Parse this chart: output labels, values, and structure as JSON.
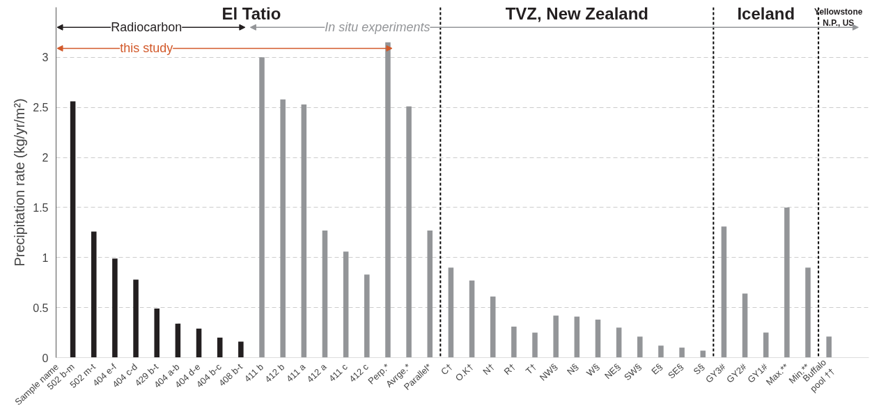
{
  "chart_data": {
    "type": "bar",
    "ylabel": "Precipitation rate (kg/yr/m²)",
    "categories": [
      "502 b-m",
      "502 m-t",
      "404 e-f",
      "404 c-d",
      "429 b-t",
      "404 a-b",
      "404 d-e",
      "404 b-c",
      "408 b-t",
      "411 b",
      "412 b",
      "411 a",
      "412 a",
      "411 c",
      "412 c",
      "Perp.*",
      "Avrge.*",
      "Parallel*",
      "C†",
      "O.K†",
      "N†",
      "R†",
      "T†",
      "NW§",
      "N§",
      "W§",
      "NE§",
      "SW§",
      "E§",
      "SE§",
      "S§",
      "GY3#",
      "GY2#",
      "GY1#",
      "Max.**",
      "Min.**",
      "Buffalo pool ††"
    ],
    "values": [
      2.56,
      1.26,
      0.99,
      0.78,
      0.49,
      0.34,
      0.29,
      0.2,
      0.16,
      3.0,
      2.58,
      2.53,
      1.27,
      1.06,
      0.83,
      3.15,
      2.51,
      1.27,
      0.9,
      0.77,
      0.61,
      0.31,
      0.25,
      0.42,
      0.41,
      0.38,
      0.3,
      0.21,
      0.12,
      0.1,
      0.07,
      1.31,
      0.64,
      0.25,
      1.5,
      0.9,
      0.21
    ],
    "colors": [
      "#231f20",
      "#231f20",
      "#231f20",
      "#231f20",
      "#231f20",
      "#231f20",
      "#231f20",
      "#231f20",
      "#231f20",
      "#939598",
      "#939598",
      "#939598",
      "#939598",
      "#939598",
      "#939598",
      "#939598",
      "#939598",
      "#939598",
      "#939598",
      "#939598",
      "#939598",
      "#939598",
      "#939598",
      "#939598",
      "#939598",
      "#939598",
      "#939598",
      "#939598",
      "#939598",
      "#939598",
      "#939598",
      "#939598",
      "#939598",
      "#939598",
      "#939598",
      "#939598",
      "#939598"
    ],
    "ylim": [
      0,
      3.5
    ],
    "yticks": [
      0,
      0.5,
      1,
      1.5,
      2,
      2.5,
      3
    ],
    "grid": "y",
    "annotations": [
      "El Tatio",
      "TVZ, New Zealand",
      "Iceland",
      "Yellowstone\nN.P., US",
      "Radiocarbon",
      "this study",
      "In situ experiments",
      "Sample name"
    ]
  }
}
